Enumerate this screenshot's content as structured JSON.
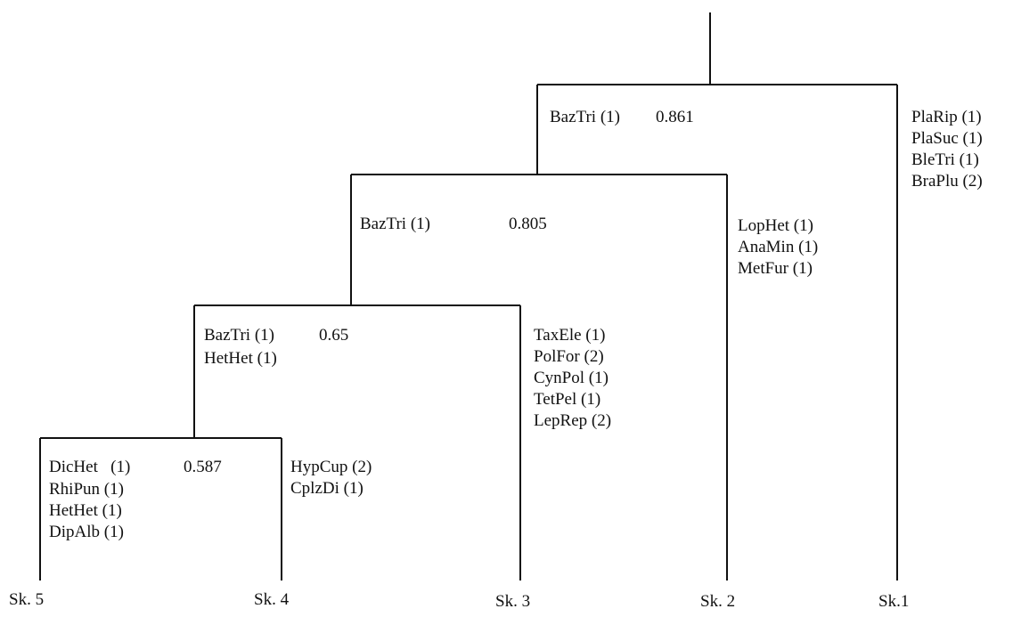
{
  "dendrogram": {
    "nodes": [
      {
        "id": "n1",
        "indicator": "BazTri (1)",
        "value": "0.861",
        "extra": []
      },
      {
        "id": "n2",
        "indicator": "BazTri (1)",
        "value": "0.805",
        "extra": []
      },
      {
        "id": "n3",
        "indicator": "BazTri (1)",
        "value": "0.65",
        "extra": [
          "HetHet (1)"
        ]
      },
      {
        "id": "n4",
        "indicator": "DicHet   (1)",
        "value": "0.587",
        "extra": [
          "RhiPun (1)",
          "HetHet (1)",
          "DipAlb (1)"
        ]
      }
    ],
    "branch_species": {
      "sk1": [
        "PlaRip (1)",
        "PlaSuc (1)",
        "BleTri (1)",
        "BraPlu (2)"
      ],
      "sk2": [
        "LopHet (1)",
        "AnaMin (1)",
        "MetFur (1)"
      ],
      "sk3": [
        "TaxEle (1)",
        "PolFor (2)",
        "CynPol (1)",
        "TetPel (1)",
        "LepRep (2)"
      ],
      "sk4": [
        "HypCup (2)",
        "CplzDi (1)"
      ]
    },
    "leaves": {
      "sk5": "Sk. 5",
      "sk4": "Sk. 4",
      "sk3": "Sk. 3",
      "sk2": "Sk. 2",
      "sk1": "Sk.1"
    }
  }
}
